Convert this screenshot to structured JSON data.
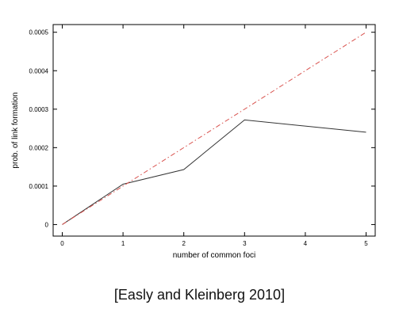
{
  "chart_data": {
    "type": "line",
    "title": "",
    "xlabel": "number of common foci",
    "ylabel": "prob. of link formation",
    "xlim": [
      -0.15,
      5.15
    ],
    "ylim": [
      -3e-05,
      0.00052
    ],
    "x_ticks": [
      0,
      1,
      2,
      3,
      4,
      5
    ],
    "x_tick_labels": [
      "0",
      "1",
      "2",
      "3",
      "4",
      "5"
    ],
    "y_ticks": [
      0,
      0.0001,
      0.0002,
      0.0003,
      0.0004,
      0.0005
    ],
    "y_tick_labels": [
      "0",
      "0.0001",
      "0.0002",
      "0.0003",
      "0.0004",
      "0.0005"
    ],
    "grid": false,
    "series": [
      {
        "x": [
          0,
          1,
          2,
          3,
          5
        ],
        "values": [
          0,
          0.000105,
          0.000143,
          0.000272,
          0.00024
        ],
        "color": "#333333",
        "style": "solid"
      },
      {
        "x": [
          0,
          5
        ],
        "values": [
          0,
          0.0005
        ],
        "color": "#d9534f",
        "style": "dashdot"
      }
    ]
  },
  "citation": "[Easly and Kleinberg 2010]"
}
